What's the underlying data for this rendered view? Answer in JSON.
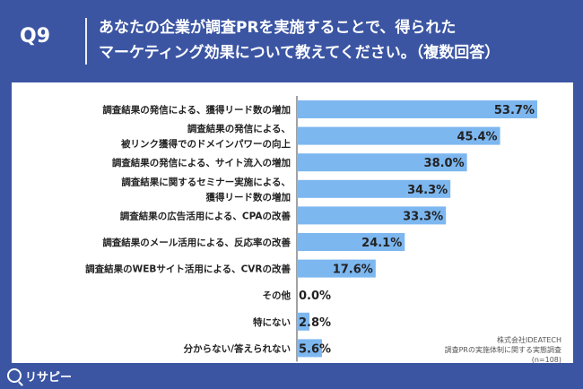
{
  "header": {
    "question_number": "Q9",
    "question_line1": "あなたの企業が調査PRを実施することで、得られた",
    "question_line2": "マーケティング効果について教えてください。（複数回答）"
  },
  "footer": {
    "logo_text": "リサピー",
    "source_line1": "株式会社IDEATECH",
    "source_line2": "調査PRの実施体制に関する実態調査",
    "source_line3": "(n=108)"
  },
  "colors": {
    "background": "#3b55a3",
    "bar": "#7db7f0",
    "panel": "#ffffff"
  },
  "chart_data": {
    "type": "bar",
    "orientation": "horizontal",
    "title": "",
    "xlabel": "",
    "ylabel": "",
    "unit": "%",
    "xlim": [
      0,
      53.7
    ],
    "categories": [
      [
        "調査結果の発信による、獲得リード数の増加"
      ],
      [
        "調査結果の発信による、",
        "被リンク獲得でのドメインパワーの向上"
      ],
      [
        "調査結果の発信による、サイト流入の増加"
      ],
      [
        "調査結果に関するセミナー実施による、",
        "獲得リード数の増加"
      ],
      [
        "調査結果の広告活用による、CPAの改善"
      ],
      [
        "調査結果のメール活用による、反応率の改善"
      ],
      [
        "調査結果のWEBサイト活用による、CVRの改善"
      ],
      [
        "その他"
      ],
      [
        "特にない"
      ],
      [
        "分からない/答えられない"
      ]
    ],
    "values": [
      53.7,
      45.4,
      38.0,
      34.3,
      33.3,
      24.1,
      17.6,
      0.0,
      2.8,
      5.6
    ],
    "value_labels": [
      "53.7%",
      "45.4%",
      "38.0%",
      "34.3%",
      "33.3%",
      "24.1%",
      "17.6%",
      "0.0%",
      "2.8%",
      "5.6%"
    ]
  }
}
